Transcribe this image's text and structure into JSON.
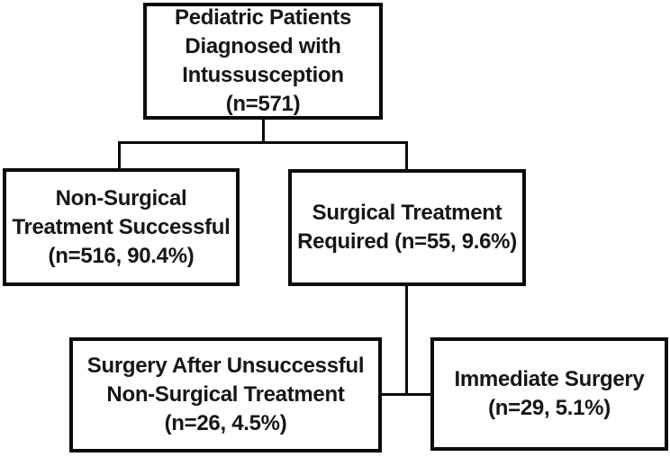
{
  "diagram": {
    "type": "flowchart",
    "colors": {
      "line": "#0b0b0b",
      "text": "#161616",
      "background": "#ffffff"
    },
    "nodes": {
      "root": {
        "text": "Pediatric Patients\nDiagnosed with\nIntussusception\n(n=571)",
        "n": "571"
      },
      "non_surgical_success": {
        "text": "Non-Surgical\nTreatment Successful\n(n=516, 90.4%)",
        "n": "516",
        "percent": "90.4%"
      },
      "surgical_required": {
        "text": "Surgical Treatment\nRequired (n=55, 9.6%)",
        "n": "55",
        "percent": "9.6%"
      },
      "surgery_after_unsuccessful": {
        "text": "Surgery After Unsuccessful\nNon-Surgical Treatment\n(n=26, 4.5%)",
        "n": "26",
        "percent": "4.5%"
      },
      "immediate_surgery": {
        "text": "Immediate Surgery\n(n=29, 5.1%)",
        "n": "29",
        "percent": "5.1%"
      }
    }
  }
}
